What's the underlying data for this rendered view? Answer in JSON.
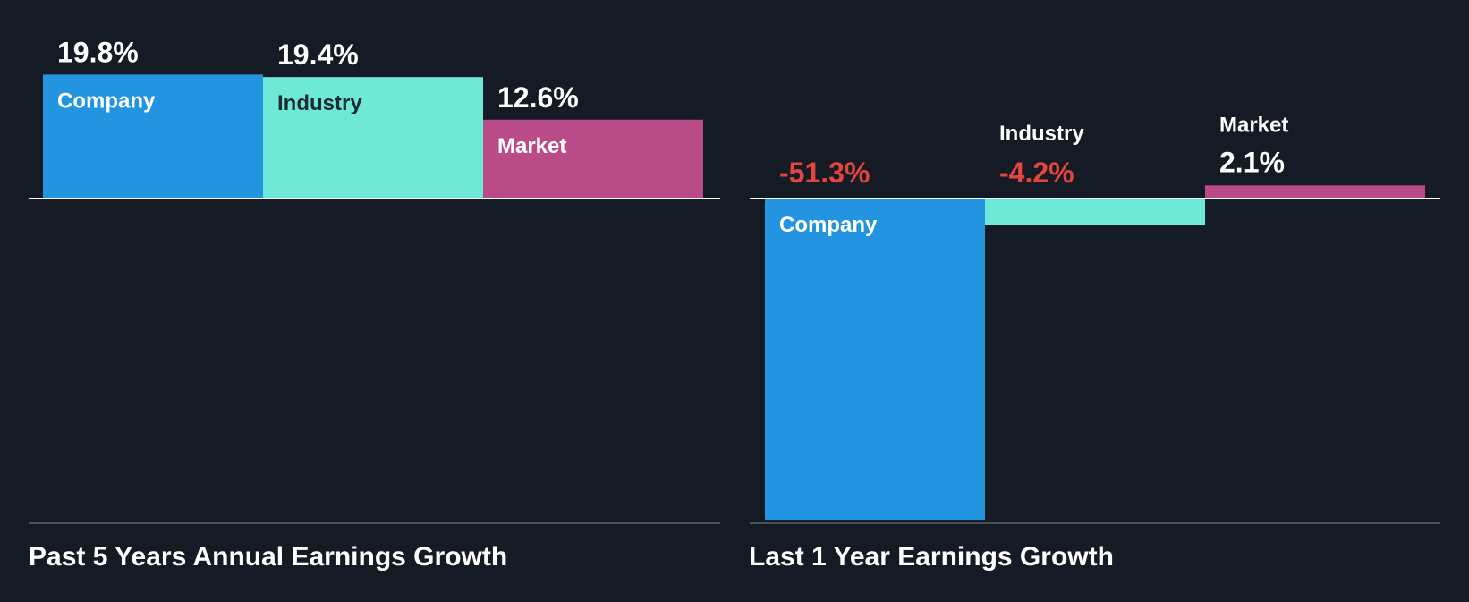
{
  "colors": {
    "background": "#151b24",
    "company": "#2394e0",
    "industry": "#6fe9d7",
    "market": "#b94b88",
    "positive_text": "#ffffff",
    "negative_text": "#e5443f",
    "baseline": "#ffffff",
    "axis_bottom": "#4a5058"
  },
  "chart_data": [
    {
      "type": "bar",
      "title": "Past 5 Years Annual Earnings Growth",
      "categories": [
        "Company",
        "Industry",
        "Market"
      ],
      "values": [
        19.8,
        19.4,
        12.6
      ],
      "value_labels": [
        "19.8%",
        "19.4%",
        "12.6%"
      ],
      "unit": "%"
    },
    {
      "type": "bar",
      "title": "Last 1 Year Earnings Growth",
      "categories": [
        "Company",
        "Industry",
        "Market"
      ],
      "values": [
        -51.3,
        -4.2,
        2.1
      ],
      "value_labels": [
        "-51.3%",
        "-4.2%",
        "2.1%"
      ],
      "unit": "%"
    }
  ]
}
